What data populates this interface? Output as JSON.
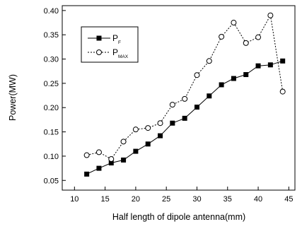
{
  "chart_data": {
    "type": "line",
    "xlabel": "Half length of dipole antenna(mm)",
    "ylabel": "Power(MW)",
    "xlim": [
      8,
      46
    ],
    "ylim": [
      0.03,
      0.41
    ],
    "x_ticks": [
      10,
      15,
      20,
      25,
      30,
      35,
      40,
      45
    ],
    "y_ticks": [
      0.05,
      0.1,
      0.15,
      0.2,
      0.25,
      0.3,
      0.35,
      0.4
    ],
    "grid": false,
    "legend_position": "upper-left",
    "series": [
      {
        "name_main": "P",
        "name_sub": "F",
        "marker": "filled-square",
        "line_style": "solid",
        "x": [
          12,
          14,
          16,
          18,
          20,
          22,
          24,
          26,
          28,
          30,
          32,
          34,
          36,
          38,
          40,
          42,
          44
        ],
        "values": [
          0.063,
          0.075,
          0.086,
          0.092,
          0.11,
          0.125,
          0.142,
          0.168,
          0.178,
          0.201,
          0.224,
          0.247,
          0.26,
          0.268,
          0.286,
          0.288,
          0.296
        ]
      },
      {
        "name_main": "P",
        "name_sub": "MAX",
        "marker": "open-circle",
        "line_style": "dashed",
        "x": [
          12,
          14,
          16,
          18,
          20,
          22,
          24,
          26,
          28,
          30,
          32,
          34,
          36,
          38,
          40,
          42,
          44
        ],
        "values": [
          0.102,
          0.108,
          0.094,
          0.13,
          0.155,
          0.158,
          0.168,
          0.206,
          0.218,
          0.267,
          0.296,
          0.346,
          0.375,
          0.333,
          0.345,
          0.39,
          0.233
        ]
      }
    ]
  }
}
